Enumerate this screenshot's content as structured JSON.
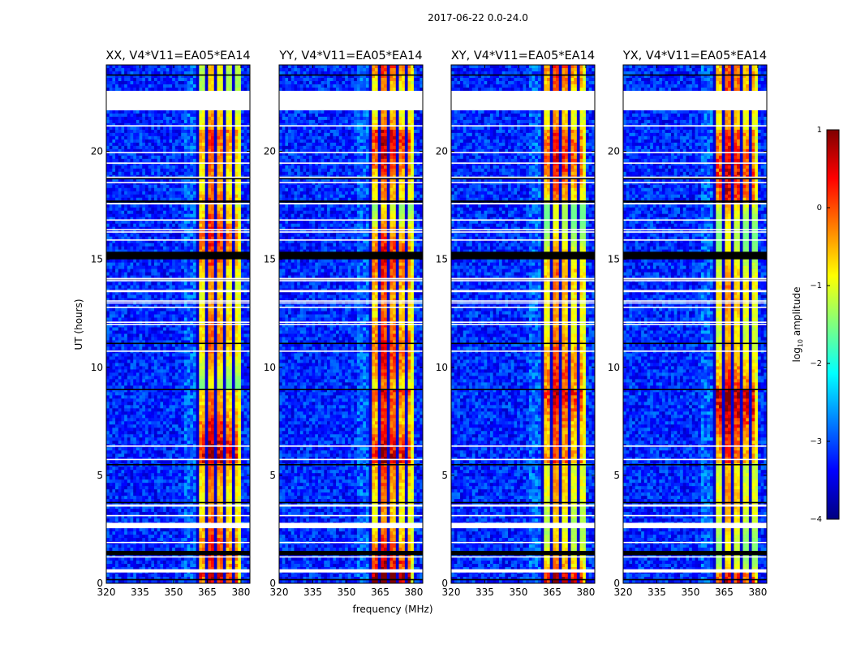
{
  "figure": {
    "suptitle": "2017-06-22 0.0-24.0",
    "xlabel": "frequency (MHz)",
    "ylabel": "UT (hours)"
  },
  "colorbar": {
    "label_prefix": "log",
    "label_sub": "10",
    "label_suffix": " amplitude",
    "ticks": [
      "1",
      "0",
      "−1",
      "−2",
      "−3",
      "−4"
    ],
    "tick_values": [
      1,
      0,
      -1,
      -2,
      -3,
      -4
    ],
    "range": [
      -4,
      1
    ],
    "colormap": "jet",
    "colormap_stops": [
      "#00007f",
      "#0000ff",
      "#007fff",
      "#00ffff",
      "#7fff7f",
      "#ffff00",
      "#ff7f00",
      "#ff0000",
      "#7f0000"
    ]
  },
  "chart_data": [
    {
      "type": "heatmap",
      "title": "XX, V4*V11=EA05*EA14",
      "x_ticks": [
        "320",
        "335",
        "350",
        "365",
        "380"
      ],
      "x_tick_values": [
        320,
        335,
        350,
        365,
        380
      ],
      "xlim": [
        320,
        384
      ],
      "y_ticks": [
        "0",
        "5",
        "10",
        "15",
        "20"
      ],
      "y_tick_values": [
        0,
        5,
        10,
        15,
        20
      ],
      "ylim": [
        0,
        24
      ],
      "bright_band_MHz": [
        360.5,
        380.5
      ],
      "peak_log10_amplitude": 0.4,
      "background_log10_amplitude": -3.2
    },
    {
      "type": "heatmap",
      "title": "YY, V4*V11=EA05*EA14",
      "x_ticks": [
        "320",
        "335",
        "350",
        "365",
        "380"
      ],
      "x_tick_values": [
        320,
        335,
        350,
        365,
        380
      ],
      "xlim": [
        320,
        384
      ],
      "y_ticks": [
        "0",
        "5",
        "10",
        "15",
        "20"
      ],
      "y_tick_values": [
        0,
        5,
        10,
        15,
        20
      ],
      "ylim": [
        0,
        24
      ],
      "bright_band_MHz": [
        360.5,
        380.5
      ],
      "peak_log10_amplitude": 0.8,
      "background_log10_amplitude": -3.2
    },
    {
      "type": "heatmap",
      "title": "XY, V4*V11=EA05*EA14",
      "x_ticks": [
        "320",
        "335",
        "350",
        "365",
        "380"
      ],
      "x_tick_values": [
        320,
        335,
        350,
        365,
        380
      ],
      "xlim": [
        320,
        384
      ],
      "y_ticks": [
        "0",
        "5",
        "10",
        "15",
        "20"
      ],
      "y_tick_values": [
        0,
        5,
        10,
        15,
        20
      ],
      "ylim": [
        0,
        24
      ],
      "bright_band_MHz": [
        360.5,
        380.5
      ],
      "peak_log10_amplitude": 0.3,
      "background_log10_amplitude": -3.2
    },
    {
      "type": "heatmap",
      "title": "YX, V4*V11=EA05*EA14",
      "x_ticks": [
        "320",
        "335",
        "350",
        "365",
        "380"
      ],
      "x_tick_values": [
        320,
        335,
        350,
        365,
        380
      ],
      "xlim": [
        320,
        384
      ],
      "y_ticks": [
        "0",
        "5",
        "10",
        "15",
        "20"
      ],
      "y_tick_values": [
        0,
        5,
        10,
        15,
        20
      ],
      "ylim": [
        0,
        24
      ],
      "bright_band_MHz": [
        360.5,
        380.5
      ],
      "peak_log10_amplitude": 0.3,
      "background_log10_amplitude": -3.2
    }
  ],
  "flagged_rows_UT": [
    {
      "range": [
        21.9,
        22.8
      ],
      "fill": "white"
    },
    {
      "range": [
        15.0,
        15.35
      ],
      "fill": "black"
    },
    {
      "range": [
        3.55,
        3.65
      ],
      "fill": "white"
    },
    {
      "range": [
        2.55,
        2.8
      ],
      "fill": "white"
    },
    {
      "range": [
        1.3,
        1.5
      ],
      "fill": "black"
    },
    {
      "range": [
        0.5,
        0.65
      ],
      "fill": "white"
    }
  ]
}
